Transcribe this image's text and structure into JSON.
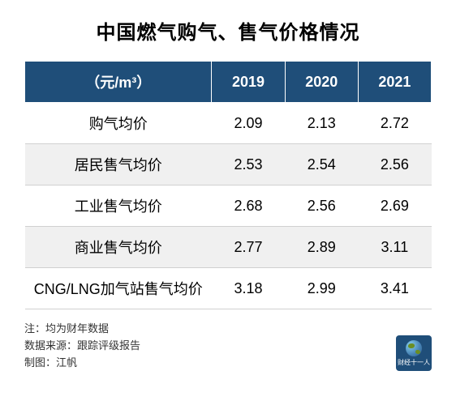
{
  "title": "中国燃气购气、售气价格情况",
  "table": {
    "header_label": "（元/m³）",
    "year_columns": [
      "2019",
      "2020",
      "2021"
    ],
    "rows": [
      {
        "label": "购气均价",
        "values": [
          "2.09",
          "2.13",
          "2.72"
        ]
      },
      {
        "label": "居民售气均价",
        "values": [
          "2.53",
          "2.54",
          "2.56"
        ]
      },
      {
        "label": "工业售气均价",
        "values": [
          "2.68",
          "2.56",
          "2.69"
        ]
      },
      {
        "label": "商业售气均价",
        "values": [
          "2.77",
          "2.89",
          "3.11"
        ]
      },
      {
        "label": "CNG/LNG加气站售气均价",
        "values": [
          "3.18",
          "2.99",
          "3.41"
        ]
      }
    ],
    "header_bg": "#1f4e79",
    "header_text_color": "#ffffff",
    "row_even_bg": "#f0f0f0",
    "row_odd_bg": "#ffffff",
    "border_color": "#d0d0d0"
  },
  "notes": {
    "note1": "注：均为财年数据",
    "note2": "数据来源：跟踪评级报告",
    "note3": "制图：江帆"
  },
  "logo": {
    "text": "财经十一人",
    "bg_color": "#1f4e79"
  }
}
